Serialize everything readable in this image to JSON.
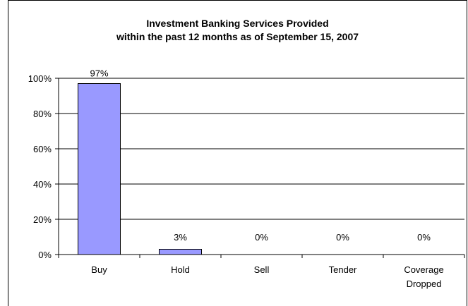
{
  "chart_data": {
    "type": "bar",
    "title_lines": [
      "Investment Banking Services Provided",
      "within the past 12 months as of September 15, 2007"
    ],
    "categories": [
      [
        "Buy"
      ],
      [
        "Hold"
      ],
      [
        "Sell"
      ],
      [
        "Tender"
      ],
      [
        "Coverage",
        "Dropped"
      ]
    ],
    "values": [
      97,
      3,
      0,
      0,
      0
    ],
    "data_labels": [
      "97%",
      "3%",
      "0%",
      "0%",
      "0%"
    ],
    "ylim": [
      0,
      100
    ],
    "y_ticks": [
      0,
      20,
      40,
      60,
      80,
      100
    ],
    "y_tick_labels": [
      "0%",
      "20%",
      "40%",
      "60%",
      "80%",
      "100%"
    ],
    "grid": true,
    "bar_color": "#9999ff",
    "bar_border_color": "#000000",
    "xlabel": "",
    "ylabel": ""
  }
}
